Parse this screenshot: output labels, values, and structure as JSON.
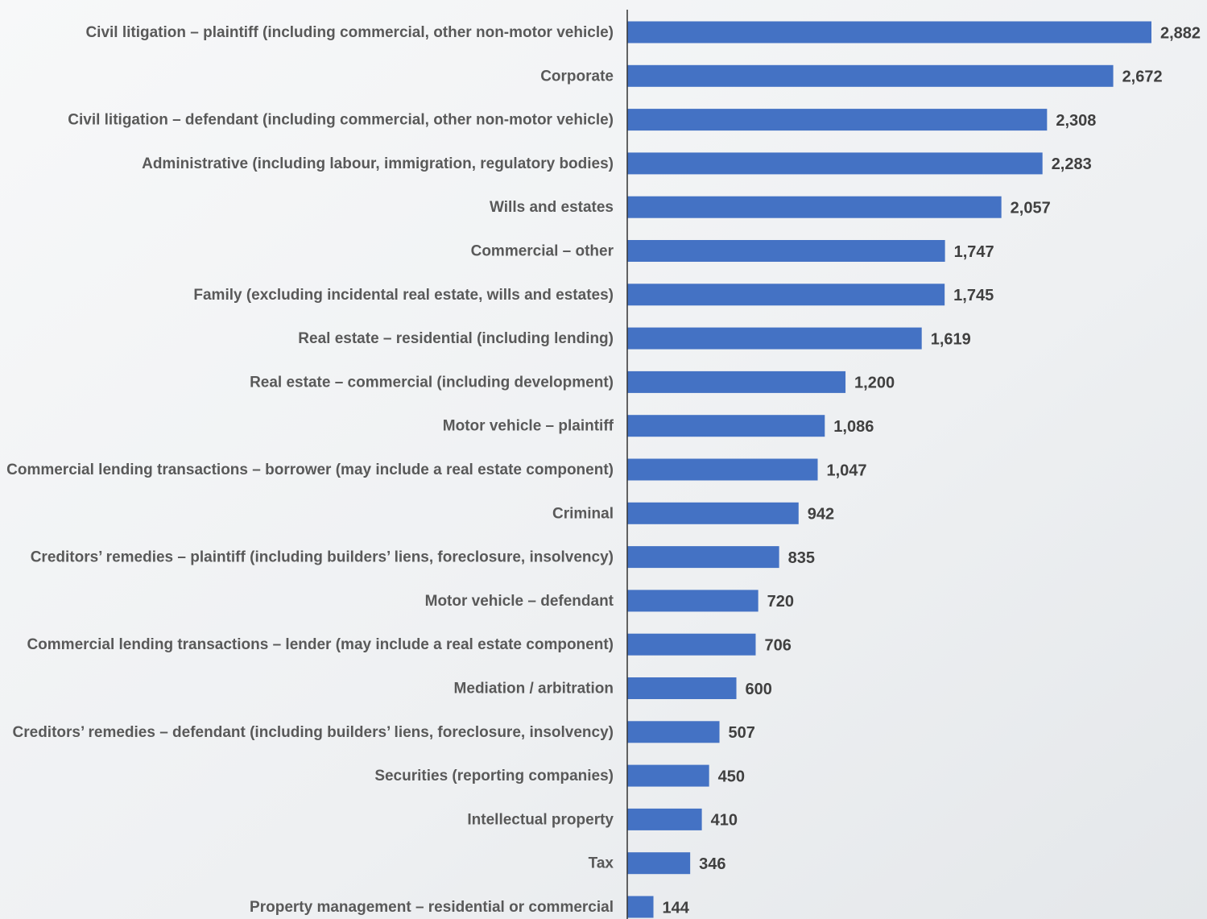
{
  "chart_data": {
    "type": "bar",
    "orientation": "horizontal",
    "color": "#4472c4",
    "categories": [
      "Civil litigation – plaintiff (including commercial, other non-motor vehicle)",
      "Corporate",
      "Civil litigation – defendant (including commercial, other non-motor vehicle)",
      "Administrative (including labour, immigration, regulatory bodies)",
      "Wills and estates",
      "Commercial – other",
      "Family (excluding incidental real estate, wills and estates)",
      "Real estate – residential (including lending)",
      "Real estate – commercial (including development)",
      "Motor vehicle – plaintiff",
      "Commercial lending transactions – borrower (may include a real estate component)",
      "Criminal",
      "Creditors’ remedies – plaintiff (including builders’ liens, foreclosure, insolvency)",
      "Motor vehicle – defendant",
      "Commercial lending transactions – lender (may include a real estate component)",
      "Mediation / arbitration",
      "Creditors’ remedies – defendant (including builders’ liens, foreclosure, insolvency)",
      "Securities (reporting companies)",
      "Intellectual property",
      "Tax",
      "Property management – residential or commercial"
    ],
    "values": [
      2882,
      2672,
      2308,
      2283,
      2057,
      1747,
      1745,
      1619,
      1200,
      1086,
      1047,
      942,
      835,
      720,
      706,
      600,
      507,
      450,
      410,
      346,
      144
    ],
    "value_labels": [
      "2,882",
      "2,672",
      "2,308",
      "2,283",
      "2,057",
      "1,747",
      "1,745",
      "1,619",
      "1,200",
      "1,086",
      "1,047",
      "942",
      "835",
      "720",
      "706",
      "600",
      "507",
      "450",
      "410",
      "346",
      "144"
    ]
  }
}
